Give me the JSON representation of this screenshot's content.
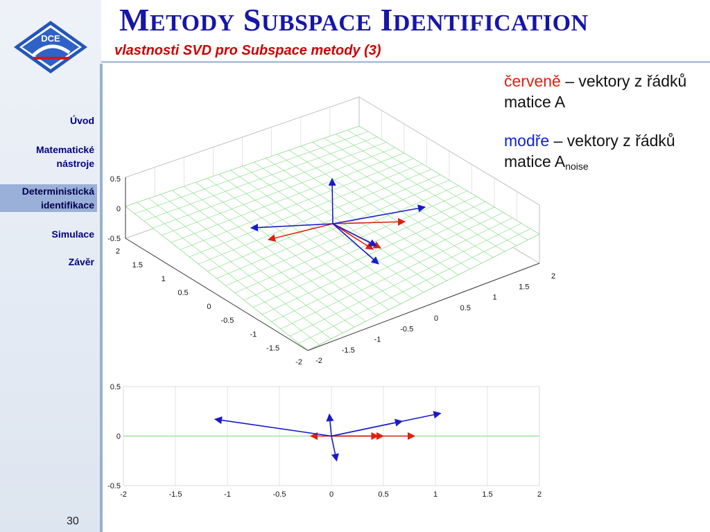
{
  "title": {
    "first": "M",
    "first_rest": "ETODY",
    "second": "S",
    "second_rest": "UBSPACE",
    "third": "I",
    "third_rest": "DENTIFICATION"
  },
  "subtitle": "vlastnosti SVD pro Subspace metody (3)",
  "logo": {
    "text": "DCE"
  },
  "nav": [
    {
      "label": "Úvod",
      "active": false
    },
    {
      "label": "Matematické nástroje",
      "active": false
    },
    {
      "label": "Deterministická identifikace",
      "active": true
    },
    {
      "label": "Simulace",
      "active": false
    },
    {
      "label": "Závěr",
      "active": false
    }
  ],
  "page_number": "30",
  "legend": {
    "red_word": "červeně",
    "red_rest": " – vektory z řádků matice A",
    "blue_word": "modře",
    "blue_rest": " – vektory z řádků matice A",
    "blue_sub": "noise"
  },
  "colors": {
    "red": "#e02010",
    "blue": "#1a1ac8",
    "grid": "#8be08b",
    "title": "#1616a8"
  },
  "chart_data": [
    {
      "type": "3d-vector-plot",
      "z_ticks": [
        "0.5",
        "0",
        "-0.5"
      ],
      "y_ticks": [
        "2",
        "1.5",
        "1",
        "0.5",
        "0",
        "-0.5",
        "-1",
        "-1.5",
        "-2"
      ],
      "x_ticks": [
        "-2",
        "-1.5",
        "-1",
        "-0.5",
        "0",
        "0.5",
        "1",
        "1.5",
        "2"
      ],
      "zlim": [
        -0.5,
        0.5
      ],
      "xlim": [
        -2,
        2
      ],
      "ylim": [
        -2,
        2
      ],
      "grid": true
    },
    {
      "type": "line",
      "x_ticks": [
        "-2",
        "-1.5",
        "-1",
        "-0.5",
        "0",
        "0.5",
        "1",
        "1.5",
        "2"
      ],
      "y_ticks": [
        "0.5",
        "0",
        "-0.5"
      ],
      "xlim": [
        -2,
        2
      ],
      "ylim": [
        -0.5,
        0.5
      ],
      "grid": true,
      "series": [
        {
          "color": "red",
          "vectors": [
            [
              -0.2,
              0
            ],
            [
              0.5,
              0
            ],
            [
              0.8,
              0
            ],
            [
              0.45,
              0
            ]
          ]
        },
        {
          "color": "blue",
          "vectors": [
            [
              -1.12,
              0.17
            ],
            [
              -0.02,
              0.22
            ],
            [
              0.05,
              -0.25
            ],
            [
              0.68,
              0.15
            ],
            [
              1.05,
              0.23
            ]
          ]
        }
      ]
    }
  ]
}
